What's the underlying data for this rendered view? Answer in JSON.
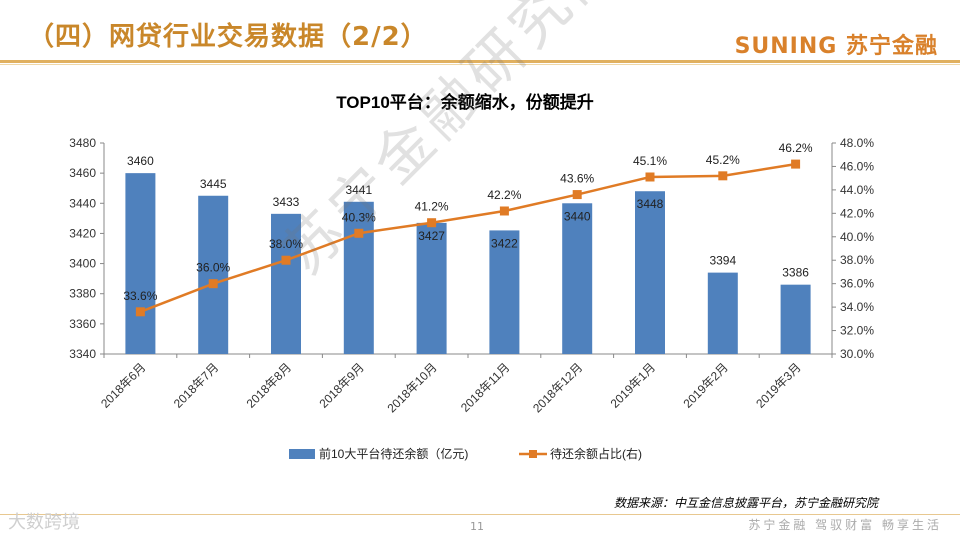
{
  "slide": {
    "title": "（四）网贷行业交易数据（2/2）",
    "brand": "SUNING 苏宁金融",
    "source": "数据来源：中互金信息披露平台，苏宁金融研究院",
    "page_number": "11",
    "slogan": "苏宁金融  驾驭财富  畅享生活",
    "watermark_logo": "大数跨境",
    "watermark_text": "苏宁金融研究院"
  },
  "chart_data": {
    "type": "bar",
    "title": "TOP10平台：余额缩水，份额提升",
    "categories": [
      "2018年6月",
      "2018年7月",
      "2018年8月",
      "2018年9月",
      "2018年10月",
      "2018年11月",
      "2018年12月",
      "2019年1月",
      "2019年2月",
      "2019年3月"
    ],
    "series": [
      {
        "name": "前10大平台待还余额（亿元)",
        "type": "bar",
        "axis": "left",
        "values": [
          3460,
          3445,
          3433,
          3441,
          3427,
          3422,
          3440,
          3448,
          3394,
          3386
        ],
        "labels": [
          "3460",
          "3445",
          "3433",
          "3441",
          "3427",
          "3422",
          "3440",
          "3448",
          "3394",
          "3386"
        ]
      },
      {
        "name": "待还余额占比(右)",
        "type": "line",
        "axis": "right",
        "values": [
          33.6,
          36.0,
          38.0,
          40.3,
          41.2,
          42.2,
          43.6,
          45.1,
          45.2,
          46.2
        ],
        "labels": [
          "33.6%",
          "36.0%",
          "38.0%",
          "40.3%",
          "41.2%",
          "42.2%",
          "43.6%",
          "45.1%",
          "45.2%",
          "46.2%"
        ]
      }
    ],
    "y_left": {
      "min": 3340,
      "max": 3480,
      "ticks": [
        "3340",
        "3360",
        "3380",
        "3400",
        "3420",
        "3440",
        "3460",
        "3480"
      ]
    },
    "y_right": {
      "min": 30,
      "max": 48,
      "ticks": [
        "30.0%",
        "32.0%",
        "34.0%",
        "36.0%",
        "38.0%",
        "40.0%",
        "42.0%",
        "44.0%",
        "46.0%",
        "48.0%"
      ]
    },
    "grid": false,
    "legend_position": "bottom",
    "colors": {
      "bar": "#4f81bd",
      "line": "#e07b25"
    }
  }
}
